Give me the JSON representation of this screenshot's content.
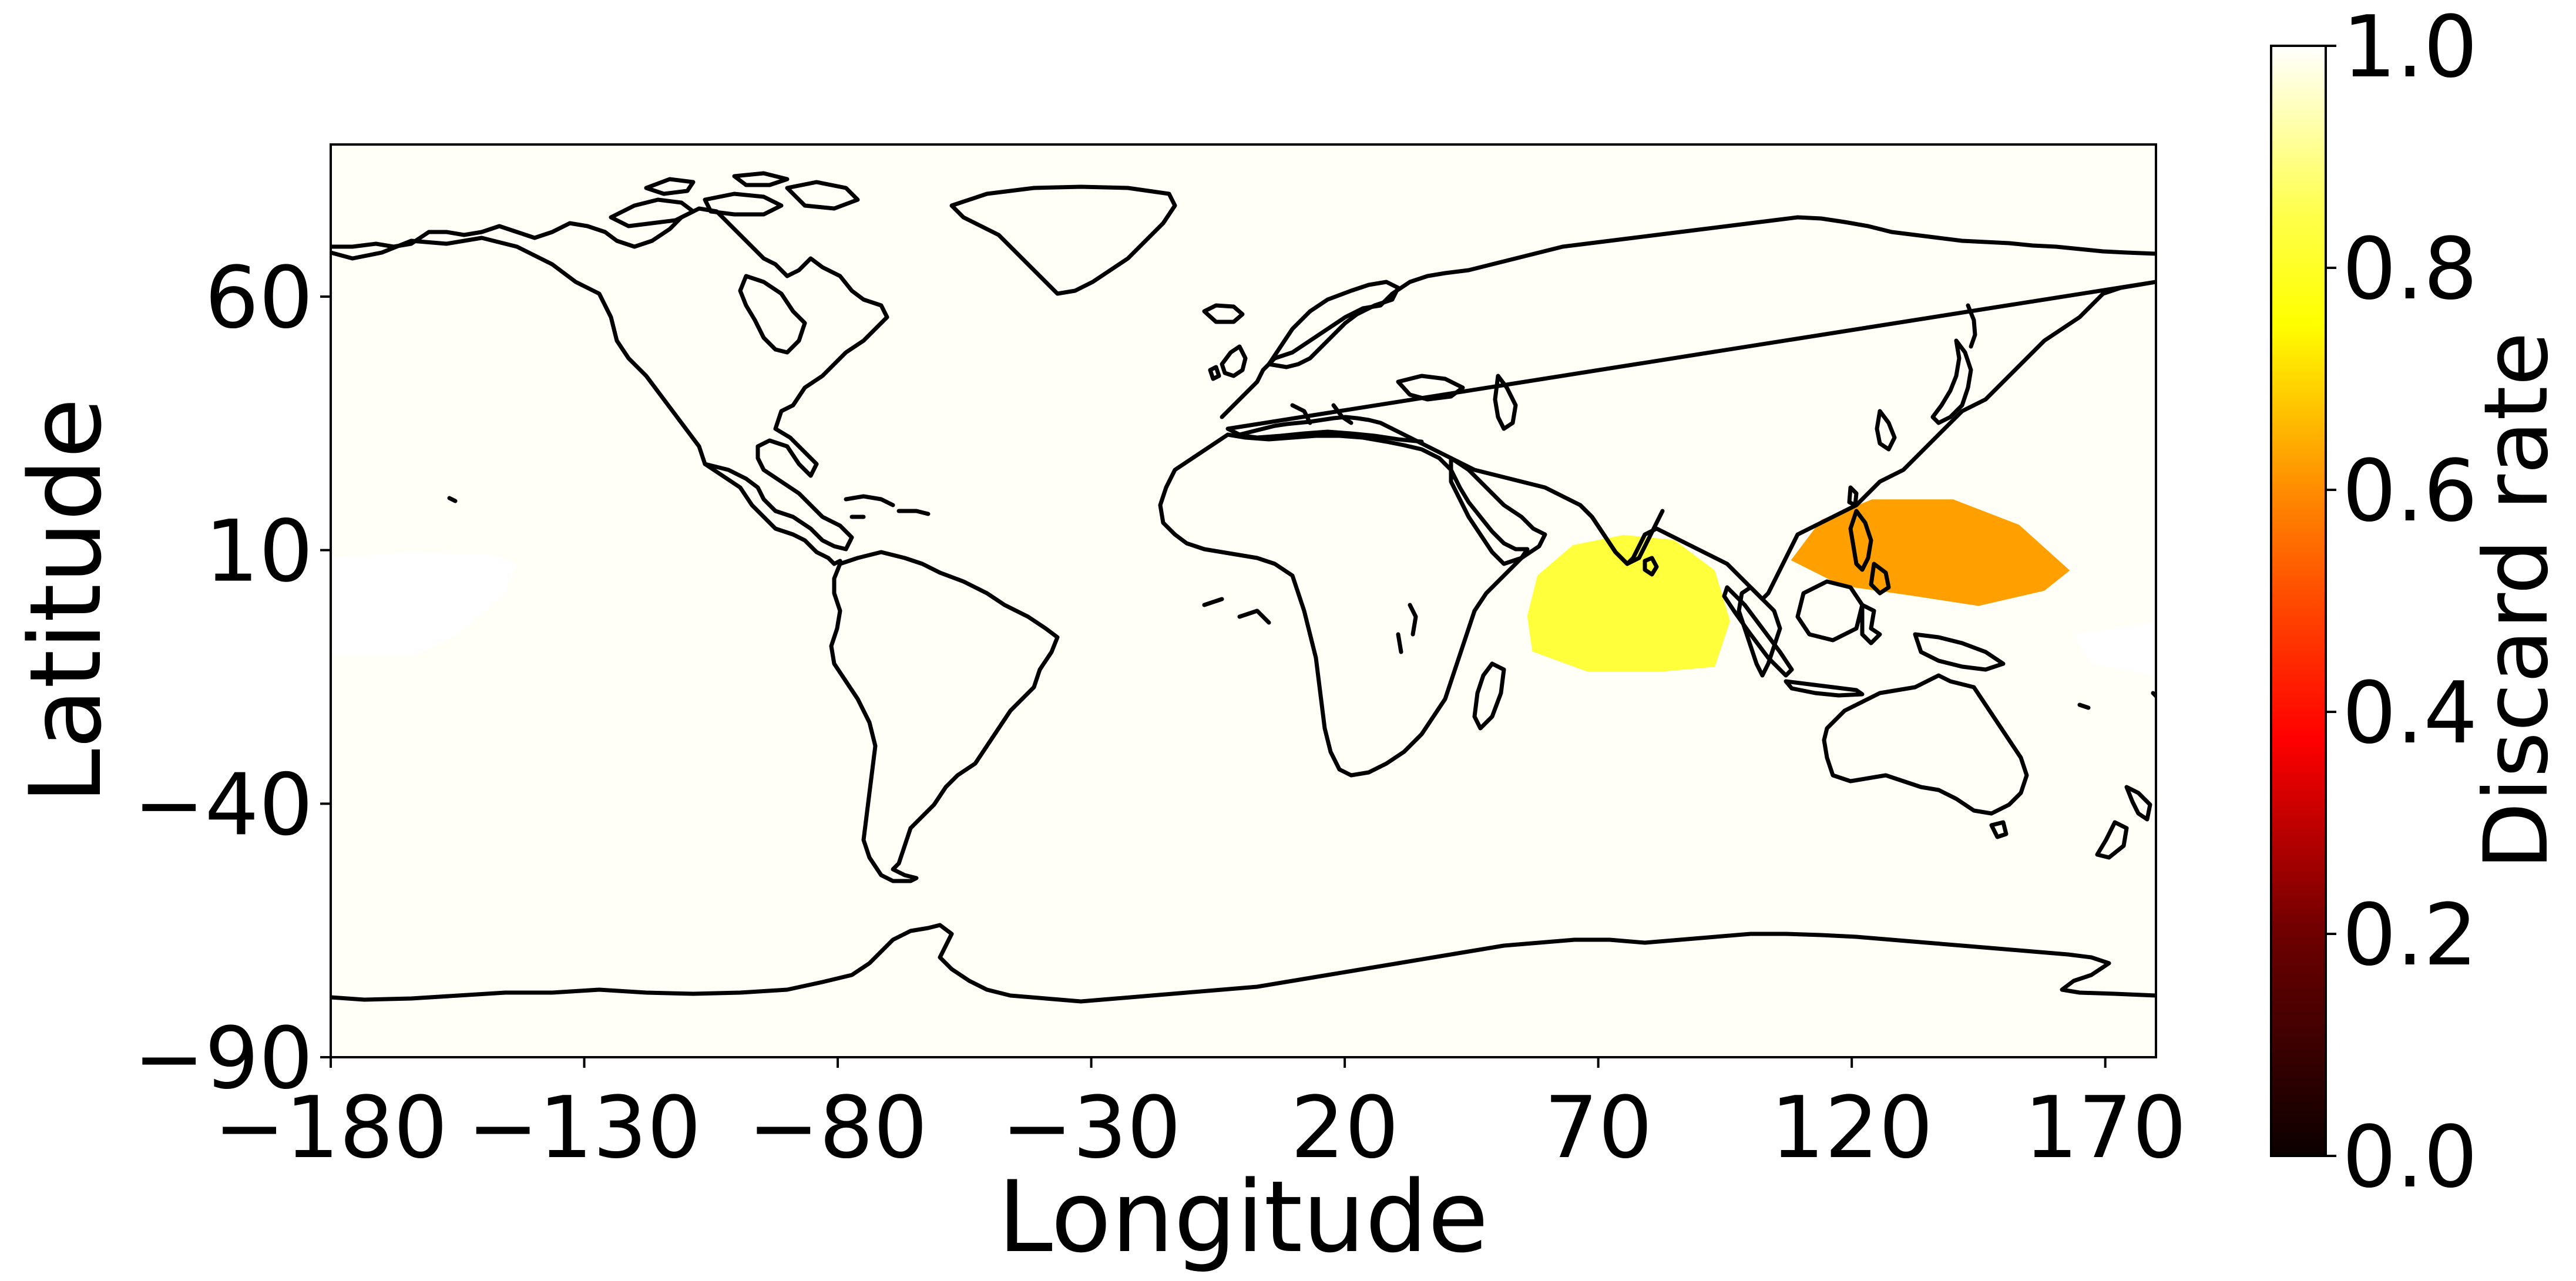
{
  "chart_data": {
    "type": "heatmap",
    "xlabel": "Longitude",
    "ylabel": "Latitude",
    "xlim": [
      -180,
      180
    ],
    "ylim": [
      -90,
      90
    ],
    "x_ticks": [
      -180,
      -130,
      -80,
      -30,
      20,
      70,
      120,
      170
    ],
    "x_tick_labels": [
      "−180",
      "−130",
      "−80",
      "−30",
      "20",
      "70",
      "120",
      "170"
    ],
    "y_ticks": [
      60,
      10,
      -40,
      -90
    ],
    "y_tick_labels": [
      "60",
      "10",
      "−40",
      "−90"
    ],
    "background_value": 0.99,
    "regions": [
      {
        "region": "Indian Ocean (south of India)",
        "value": 0.8,
        "color": "#ffff3c",
        "outline": [
          [
            56,
            -3
          ],
          [
            58,
            5
          ],
          [
            65,
            11
          ],
          [
            75,
            13
          ],
          [
            85,
            12
          ],
          [
            93,
            6
          ],
          [
            96,
            -4
          ],
          [
            93,
            -13
          ],
          [
            82,
            -14
          ],
          [
            68,
            -14
          ],
          [
            57,
            -10
          ]
        ]
      },
      {
        "region": "Western Pacific (Philippines)",
        "value": 0.62,
        "color": "#ffa000",
        "outline": [
          [
            108,
            8
          ],
          [
            114,
            16
          ],
          [
            124,
            20
          ],
          [
            140,
            20
          ],
          [
            153,
            15
          ],
          [
            163,
            6
          ],
          [
            158,
            2
          ],
          [
            145,
            -1
          ],
          [
            132,
            1
          ],
          [
            118,
            3
          ]
        ]
      }
    ],
    "colorbar": {
      "label": "Discard rate",
      "range": [
        0.0,
        1.0
      ],
      "ticks": [
        0.0,
        0.2,
        0.4,
        0.6,
        0.8,
        1.0
      ],
      "tick_labels": [
        "0.0",
        "0.2",
        "0.4",
        "0.6",
        "0.8",
        "1.0"
      ],
      "colormap": "hot",
      "stops": [
        {
          "value": 0.0,
          "color": "#0b0000"
        },
        {
          "value": 0.2,
          "color": "#6e0000"
        },
        {
          "value": 0.375,
          "color": "#ff0000"
        },
        {
          "value": 0.5,
          "color": "#ff4a00"
        },
        {
          "value": 0.6,
          "color": "#ff8c00"
        },
        {
          "value": 0.75,
          "color": "#ffff00"
        },
        {
          "value": 0.85,
          "color": "#ffff4d"
        },
        {
          "value": 1.0,
          "color": "#ffffff"
        }
      ]
    }
  }
}
